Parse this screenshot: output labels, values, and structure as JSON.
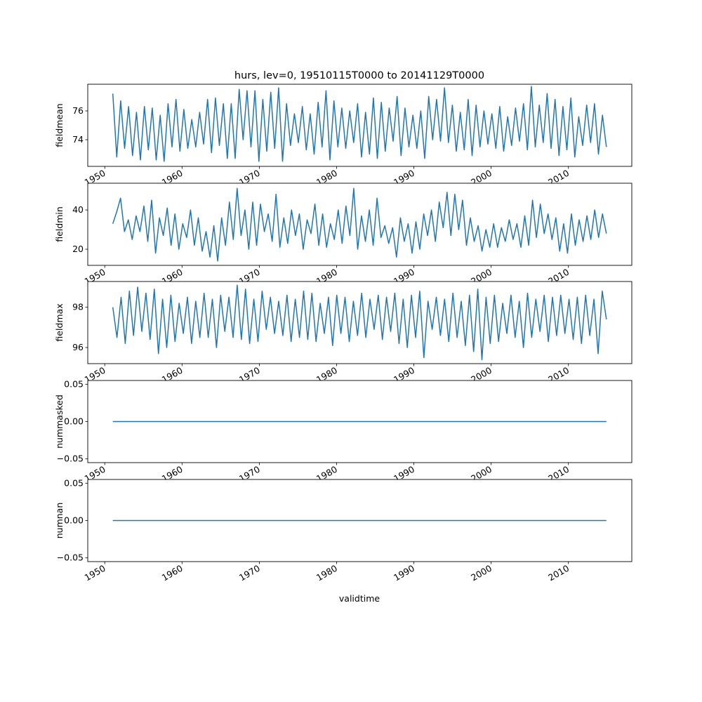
{
  "chart_data": {
    "type": "line",
    "title": "hurs, lev=0, 19510115T0000 to 20141129T0000",
    "xlabel": "validtime",
    "x_start": 1951.04,
    "x_end": 2014.91,
    "xlim": [
      1947.8,
      2018.2
    ],
    "xticks": [
      "1950",
      "1960",
      "1970",
      "1980",
      "1990",
      "2000",
      "2010"
    ],
    "color": "#1f77b4",
    "subplots": [
      {
        "ylabel": "fieldmean",
        "ylim": [
          72.15,
          77.85
        ],
        "yticks": [
          {
            "v": 74,
            "label": "74"
          },
          {
            "v": 76,
            "label": "76"
          }
        ],
        "values": [
          77.2,
          72.8,
          76.7,
          73.4,
          76.3,
          72.9,
          75.9,
          72.6,
          76.3,
          73.3,
          76.2,
          72.6,
          75.7,
          72.5,
          76.5,
          73.5,
          76.8,
          73.2,
          76.1,
          73.4,
          75.4,
          73.5,
          75.9,
          73.7,
          76.8,
          73.1,
          76.9,
          73.6,
          76.5,
          72.7,
          76.5,
          72.7,
          77.5,
          74.0,
          77.4,
          73.5,
          77.4,
          72.5,
          76.8,
          73.2,
          77.3,
          73.4,
          77.6,
          72.5,
          76.5,
          73.6,
          75.8,
          73.8,
          76.3,
          73.3,
          75.8,
          73.0,
          76.6,
          73.5,
          77.4,
          72.6,
          76.7,
          73.5,
          76.2,
          73.4,
          76.0,
          73.8,
          76.5,
          72.8,
          75.9,
          73.0,
          76.9,
          72.7,
          76.6,
          73.2,
          76.2,
          73.9,
          77.0,
          72.9,
          76.2,
          73.5,
          75.7,
          73.4,
          76.0,
          72.7,
          77.0,
          74.0,
          76.8,
          73.9,
          77.6,
          73.8,
          76.4,
          73.2,
          75.9,
          73.3,
          76.8,
          72.9,
          76.4,
          73.5,
          76.0,
          73.7,
          75.8,
          73.4,
          76.3,
          73.2,
          75.6,
          73.6,
          76.2,
          73.9,
          76.5,
          73.3,
          77.7,
          73.5,
          76.4,
          73.8,
          77.2,
          73.4,
          76.8,
          72.9,
          76.3,
          73.3,
          76.9,
          72.8,
          75.6,
          73.6,
          76.4,
          73.8,
          76.5,
          73.0,
          75.7,
          73.5
        ]
      },
      {
        "ylabel": "fieldmin",
        "ylim": [
          11.8,
          53.6
        ],
        "yticks": [
          {
            "v": 20,
            "label": "20"
          },
          {
            "v": 40,
            "label": "40"
          }
        ],
        "values": [
          33,
          39,
          46,
          29,
          35,
          25,
          37,
          29,
          42,
          24,
          45,
          18,
          36,
          27,
          41,
          22,
          38,
          20,
          33,
          26,
          40,
          22,
          36,
          19,
          29,
          16,
          32,
          14,
          36,
          22,
          44,
          25,
          51,
          27,
          40,
          20,
          44,
          22,
          43,
          29,
          38,
          24,
          48,
          21,
          36,
          23,
          40,
          27,
          38,
          20,
          35,
          28,
          43,
          22,
          38,
          21,
          33,
          25,
          40,
          23,
          42,
          27,
          51,
          20,
          37,
          24,
          40,
          22,
          46,
          26,
          32,
          23,
          31,
          16,
          36,
          24,
          33,
          18,
          34,
          20,
          38,
          27,
          40,
          24,
          44,
          31,
          49,
          27,
          48,
          30,
          45,
          22,
          36,
          24,
          32,
          19,
          30,
          21,
          33,
          21,
          31,
          24,
          35,
          25,
          33,
          21,
          37,
          22,
          45,
          26,
          43,
          28,
          38,
          25,
          36,
          19,
          33,
          18,
          38,
          22,
          35,
          24,
          37,
          25,
          40,
          26,
          38,
          28
        ]
      },
      {
        "ylabel": "fieldmax",
        "ylim": [
          95.2,
          99.28
        ],
        "yticks": [
          {
            "v": 96,
            "label": "96"
          },
          {
            "v": 98,
            "label": "98"
          }
        ],
        "values": [
          98.0,
          96.5,
          98.5,
          96.2,
          98.8,
          96.6,
          99.0,
          96.8,
          98.7,
          96.4,
          98.9,
          95.7,
          98.4,
          96.0,
          98.6,
          96.3,
          98.2,
          96.7,
          98.5,
          96.2,
          98.3,
          96.5,
          98.7,
          96.5,
          98.4,
          96.0,
          98.6,
          96.8,
          98.5,
          96.5,
          99.1,
          96.4,
          98.9,
          96.2,
          98.4,
          96.3,
          98.8,
          96.9,
          98.5,
          96.7,
          98.3,
          96.6,
          98.6,
          96.3,
          98.4,
          96.5,
          98.8,
          96.4,
          98.7,
          96.3,
          98.2,
          96.7,
          98.5,
          96.1,
          98.6,
          96.7,
          98.5,
          96.3,
          98.3,
          96.6,
          98.7,
          96.5,
          98.4,
          96.9,
          98.6,
          96.4,
          98.5,
          96.8,
          98.7,
          96.2,
          98.4,
          96.0,
          98.6,
          96.5,
          98.8,
          95.5,
          98.3,
          96.9,
          98.5,
          96.6,
          98.4,
          96.3,
          98.7,
          96.5,
          98.3,
          96.1,
          98.6,
          95.8,
          98.9,
          95.4,
          98.5,
          96.2,
          98.6,
          96.3,
          98.2,
          96.7,
          98.6,
          96.5,
          98.3,
          96.0,
          98.7,
          96.5,
          98.4,
          96.8,
          98.6,
          96.3,
          98.5,
          96.6,
          98.6,
          96.7,
          98.4,
          96.4,
          98.5,
          96.2,
          98.6,
          96.6,
          98.4,
          95.7,
          98.8,
          97.4
        ]
      },
      {
        "ylabel": "nummasked",
        "ylim": [
          -0.055,
          0.055
        ],
        "yticks": [
          {
            "v": -0.05,
            "label": "−0.05"
          },
          {
            "v": 0,
            "label": "0.00"
          },
          {
            "v": 0.05,
            "label": "0.05"
          }
        ],
        "values": [
          0,
          0
        ]
      },
      {
        "ylabel": "numnan",
        "ylim": [
          -0.055,
          0.055
        ],
        "yticks": [
          {
            "v": -0.05,
            "label": "−0.05"
          },
          {
            "v": 0,
            "label": "0.00"
          },
          {
            "v": 0.05,
            "label": "0.05"
          }
        ],
        "values": [
          0,
          0
        ]
      }
    ]
  }
}
